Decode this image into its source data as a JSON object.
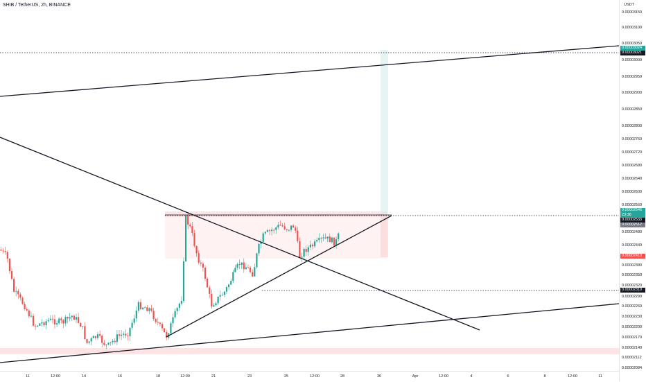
{
  "header": {
    "symbol_title": "SHIB / TetherUS, 2h, BINANCE"
  },
  "price_axis": {
    "currency": "USDT",
    "labels": [
      "0.00003150",
      "0.00003100",
      "0.00003050",
      "0.00003000",
      "0.00002950",
      "0.00002900",
      "0.00002850",
      "0.00002800",
      "0.00002760",
      "0.00002720",
      "0.00002680",
      "0.00002640",
      "0.00002600",
      "0.00002560",
      "0.00002480",
      "0.00002440",
      "0.00002380",
      "0.00002350",
      "0.00002320",
      "0.00002290",
      "0.00002260",
      "0.00002230",
      "0.00002200",
      "0.00002170",
      "0.00002140",
      "0.00002112",
      "0.00002084"
    ],
    "tags": {
      "target_green": "0.00003024",
      "target_black": "0.00003021",
      "last_price": "0.00002546",
      "countdown": "23:38",
      "level_black": "0.00002533",
      "level_gray": "0.00002512",
      "stop_red": "0.00002410",
      "support_black": "0.00002310"
    },
    "colors": {
      "green": "#26a69a",
      "red": "#ef5350",
      "black": "#131722",
      "gray": "#787b86"
    }
  },
  "time_axis": {
    "labels": [
      "11",
      "12:00",
      "14",
      "16",
      "18",
      "12:00",
      "21",
      "23",
      "25",
      "12:00",
      "28",
      "30",
      "Apr",
      "12:00",
      "4",
      "6",
      "8",
      "12:00",
      "11"
    ]
  },
  "candle_colors": {
    "up": "#26a69a",
    "down": "#ef5350"
  }
}
